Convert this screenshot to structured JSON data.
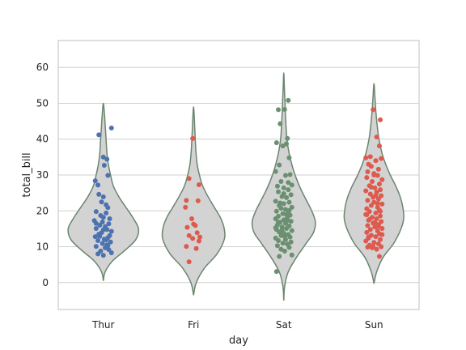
{
  "chart_data": {
    "type": "violin+strip",
    "xlabel": "day",
    "ylabel": "total_bill",
    "categories": [
      "Thur",
      "Fri",
      "Sat",
      "Sun"
    ],
    "ylim": [
      -7.5,
      67.5
    ],
    "yticks": [
      0,
      10,
      20,
      30,
      40,
      50,
      60
    ],
    "grid": "horizontal",
    "colors": {
      "violin_fill": "#d3d3d3",
      "violin_edge": "#6b8570",
      "Thur": "#4c72b0",
      "Fri": "#dd5a4e",
      "Sat": "#6a9070",
      "Sun": "#dd5a4e",
      "grid": "#cfcfcf",
      "frame": "#cccccc"
    },
    "violins": [
      {
        "day": "Thur",
        "min": 0.5,
        "max": 50,
        "profile": [
          [
            0.5,
            0.0
          ],
          [
            3,
            0.02
          ],
          [
            6,
            0.1
          ],
          [
            9,
            0.24
          ],
          [
            12,
            0.36
          ],
          [
            15,
            0.39
          ],
          [
            18,
            0.33
          ],
          [
            21,
            0.25
          ],
          [
            24,
            0.17
          ],
          [
            27,
            0.11
          ],
          [
            30,
            0.08
          ],
          [
            33,
            0.055
          ],
          [
            36,
            0.04
          ],
          [
            40,
            0.03
          ],
          [
            44,
            0.02
          ],
          [
            47,
            0.012
          ],
          [
            50,
            0.0
          ]
        ]
      },
      {
        "day": "Fri",
        "min": -3.5,
        "max": 49,
        "profile": [
          [
            -3.5,
            0.0
          ],
          [
            0,
            0.03
          ],
          [
            4,
            0.12
          ],
          [
            8,
            0.26
          ],
          [
            12,
            0.34
          ],
          [
            15,
            0.34
          ],
          [
            18,
            0.3
          ],
          [
            21,
            0.23
          ],
          [
            24,
            0.16
          ],
          [
            27,
            0.1
          ],
          [
            30,
            0.065
          ],
          [
            33,
            0.04
          ],
          [
            37,
            0.025
          ],
          [
            42,
            0.015
          ],
          [
            46,
            0.008
          ],
          [
            49,
            0.0
          ]
        ]
      },
      {
        "day": "Sat",
        "min": -5,
        "max": 58.5,
        "profile": [
          [
            -5,
            0.0
          ],
          [
            -1,
            0.01
          ],
          [
            3,
            0.05
          ],
          [
            7,
            0.14
          ],
          [
            11,
            0.25
          ],
          [
            14,
            0.33
          ],
          [
            17,
            0.35
          ],
          [
            20,
            0.31
          ],
          [
            23,
            0.25
          ],
          [
            26,
            0.19
          ],
          [
            29,
            0.14
          ],
          [
            32,
            0.1
          ],
          [
            36,
            0.06
          ],
          [
            40,
            0.035
          ],
          [
            45,
            0.022
          ],
          [
            50,
            0.014
          ],
          [
            54,
            0.007
          ],
          [
            58.5,
            0.0
          ]
        ]
      },
      {
        "day": "Sun",
        "min": -0.3,
        "max": 55.5,
        "profile": [
          [
            -0.3,
            0.0
          ],
          [
            3,
            0.03
          ],
          [
            7,
            0.1
          ],
          [
            11,
            0.22
          ],
          [
            15,
            0.3
          ],
          [
            18,
            0.33
          ],
          [
            21,
            0.32
          ],
          [
            24,
            0.29
          ],
          [
            27,
            0.24
          ],
          [
            30,
            0.18
          ],
          [
            33,
            0.13
          ],
          [
            36,
            0.09
          ],
          [
            40,
            0.055
          ],
          [
            44,
            0.035
          ],
          [
            48,
            0.02
          ],
          [
            52,
            0.01
          ],
          [
            55.5,
            0.0
          ]
        ]
      }
    ],
    "points": {
      "Thur": [
        [
          -0.05,
          41.2
        ],
        [
          0.09,
          43.1
        ],
        [
          0.0,
          35.0
        ],
        [
          0.04,
          34.4
        ],
        [
          0.01,
          32.7
        ],
        [
          0.05,
          29.9
        ],
        [
          -0.09,
          28.4
        ],
        [
          -0.06,
          27.2
        ],
        [
          -0.05,
          24.6
        ],
        [
          0.0,
          23.9
        ],
        [
          -0.02,
          22.5
        ],
        [
          0.03,
          21.7
        ],
        [
          0.05,
          20.9
        ],
        [
          -0.08,
          19.8
        ],
        [
          0.03,
          19.4
        ],
        [
          -0.03,
          18.7
        ],
        [
          0.0,
          18.2
        ],
        [
          0.07,
          17.8
        ],
        [
          -0.1,
          17.3
        ],
        [
          -0.01,
          16.9
        ],
        [
          0.06,
          16.4
        ],
        [
          -0.04,
          16.0
        ],
        [
          0.02,
          15.6
        ],
        [
          -0.08,
          15.1
        ],
        [
          0.04,
          14.8
        ],
        [
          0.09,
          14.3
        ],
        [
          -0.02,
          13.9
        ],
        [
          -0.05,
          13.5
        ],
        [
          0.07,
          13.1
        ],
        [
          -0.09,
          12.8
        ],
        [
          0.05,
          12.5
        ],
        [
          0.01,
          12.1
        ],
        [
          -0.06,
          11.7
        ],
        [
          0.08,
          11.3
        ],
        [
          -0.01,
          10.9
        ],
        [
          0.04,
          10.5
        ],
        [
          -0.08,
          10.1
        ],
        [
          0.02,
          9.7
        ],
        [
          0.06,
          9.2
        ],
        [
          -0.03,
          8.8
        ],
        [
          0.09,
          8.3
        ],
        [
          -0.06,
          8.0
        ],
        [
          0.0,
          7.6
        ],
        [
          0.05,
          10.3
        ],
        [
          -0.04,
          12.9
        ],
        [
          0.0,
          14.7
        ],
        [
          -0.08,
          16.5
        ],
        [
          0.03,
          11.9
        ]
      ],
      "Fri": [
        [
          -0.01,
          40.2
        ],
        [
          0.06,
          27.3
        ],
        [
          -0.05,
          29.0
        ],
        [
          0.05,
          22.8
        ],
        [
          -0.08,
          22.9
        ],
        [
          -0.09,
          21.0
        ],
        [
          -0.02,
          17.8
        ],
        [
          0.0,
          16.3
        ],
        [
          0.02,
          15.9
        ],
        [
          -0.07,
          15.4
        ],
        [
          0.04,
          13.9
        ],
        [
          -0.05,
          13.1
        ],
        [
          0.07,
          12.7
        ],
        [
          -0.01,
          12.3
        ],
        [
          0.06,
          11.6
        ],
        [
          -0.08,
          10.1
        ],
        [
          0.03,
          9.5
        ],
        [
          -0.05,
          5.8
        ]
      ],
      "Sat": [
        [
          0.05,
          50.8
        ],
        [
          0.01,
          48.3
        ],
        [
          -0.06,
          48.2
        ],
        [
          -0.04,
          44.3
        ],
        [
          -0.08,
          39.0
        ],
        [
          0.04,
          40.2
        ],
        [
          -0.01,
          38.1
        ],
        [
          0.03,
          38.7
        ],
        [
          0.06,
          34.8
        ],
        [
          -0.05,
          32.8
        ],
        [
          -0.09,
          31.0
        ],
        [
          0.07,
          30.1
        ],
        [
          0.02,
          29.9
        ],
        [
          -0.03,
          28.2
        ],
        [
          0.09,
          27.2
        ],
        [
          -0.07,
          26.9
        ],
        [
          0.0,
          26.4
        ],
        [
          0.05,
          25.9
        ],
        [
          -0.06,
          25.3
        ],
        [
          0.08,
          24.5
        ],
        [
          -0.02,
          24.0
        ],
        [
          0.03,
          23.7
        ],
        [
          -0.09,
          22.7
        ],
        [
          0.06,
          22.4
        ],
        [
          0.0,
          22.0
        ],
        [
          -0.05,
          21.5
        ],
        [
          0.09,
          21.0
        ],
        [
          -0.03,
          20.7
        ],
        [
          0.02,
          20.4
        ],
        [
          -0.08,
          19.9
        ],
        [
          0.05,
          19.6
        ],
        [
          -0.01,
          19.2
        ],
        [
          0.07,
          18.8
        ],
        [
          -0.06,
          18.5
        ],
        [
          0.04,
          18.2
        ],
        [
          -0.09,
          17.8
        ],
        [
          0.0,
          17.5
        ],
        [
          0.08,
          17.1
        ],
        [
          -0.04,
          16.8
        ],
        [
          0.02,
          16.5
        ],
        [
          -0.07,
          16.1
        ],
        [
          0.06,
          15.8
        ],
        [
          -0.02,
          15.5
        ],
        [
          0.03,
          15.1
        ],
        [
          -0.08,
          14.8
        ],
        [
          0.09,
          14.5
        ],
        [
          -0.05,
          14.1
        ],
        [
          0.0,
          13.8
        ],
        [
          0.05,
          13.4
        ],
        [
          -0.03,
          13.1
        ],
        [
          0.07,
          12.7
        ],
        [
          -0.09,
          12.4
        ],
        [
          0.02,
          12.0
        ],
        [
          -0.06,
          11.7
        ],
        [
          0.08,
          11.3
        ],
        [
          -0.01,
          11.0
        ],
        [
          0.04,
          10.7
        ],
        [
          -0.07,
          10.3
        ],
        [
          0.06,
          9.8
        ],
        [
          -0.03,
          9.3
        ],
        [
          0.01,
          8.8
        ],
        [
          -0.05,
          7.3
        ],
        [
          0.09,
          7.7
        ],
        [
          -0.08,
          3.1
        ],
        [
          0.03,
          19.0
        ],
        [
          -0.04,
          22.2
        ],
        [
          0.05,
          27.9
        ],
        [
          -0.06,
          16.9
        ],
        [
          0.0,
          24.8
        ],
        [
          0.06,
          20.1
        ],
        [
          -0.09,
          15.3
        ],
        [
          0.01,
          12.9
        ],
        [
          0.04,
          17.3
        ],
        [
          -0.02,
          14.6
        ]
      ],
      "Sun": [
        [
          -0.01,
          48.2
        ],
        [
          0.07,
          45.4
        ],
        [
          0.03,
          40.6
        ],
        [
          0.06,
          38.1
        ],
        [
          -0.04,
          35.1
        ],
        [
          -0.09,
          34.8
        ],
        [
          0.08,
          34.6
        ],
        [
          0.02,
          34.0
        ],
        [
          -0.06,
          33.0
        ],
        [
          -0.03,
          32.4
        ],
        [
          0.05,
          31.6
        ],
        [
          -0.07,
          30.9
        ],
        [
          0.0,
          30.4
        ],
        [
          0.04,
          29.9
        ],
        [
          -0.08,
          29.3
        ],
        [
          0.09,
          28.7
        ],
        [
          -0.02,
          28.2
        ],
        [
          0.06,
          27.5
        ],
        [
          -0.05,
          27.0
        ],
        [
          0.01,
          26.4
        ],
        [
          0.07,
          25.9
        ],
        [
          -0.09,
          25.6
        ],
        [
          0.03,
          25.2
        ],
        [
          -0.04,
          24.7
        ],
        [
          0.08,
          24.2
        ],
        [
          -0.01,
          23.8
        ],
        [
          0.05,
          23.3
        ],
        [
          -0.07,
          22.9
        ],
        [
          0.0,
          22.4
        ],
        [
          0.09,
          21.9
        ],
        [
          -0.03,
          21.5
        ],
        [
          0.04,
          21.0
        ],
        [
          -0.08,
          20.6
        ],
        [
          0.06,
          20.2
        ],
        [
          -0.05,
          19.8
        ],
        [
          0.02,
          19.4
        ],
        [
          -0.09,
          19.0
        ],
        [
          0.07,
          18.6
        ],
        [
          -0.02,
          18.2
        ],
        [
          0.03,
          17.8
        ],
        [
          -0.06,
          17.4
        ],
        [
          0.08,
          17.0
        ],
        [
          -0.01,
          16.6
        ],
        [
          0.05,
          16.2
        ],
        [
          -0.07,
          15.9
        ],
        [
          0.01,
          15.5
        ],
        [
          0.09,
          15.1
        ],
        [
          -0.04,
          14.8
        ],
        [
          0.04,
          14.4
        ],
        [
          -0.08,
          14.0
        ],
        [
          0.06,
          13.6
        ],
        [
          -0.03,
          13.2
        ],
        [
          0.02,
          12.8
        ],
        [
          -0.06,
          12.4
        ],
        [
          0.07,
          12.0
        ],
        [
          -0.09,
          11.6
        ],
        [
          0.0,
          11.2
        ],
        [
          0.05,
          10.8
        ],
        [
          -0.05,
          10.4
        ],
        [
          0.08,
          10.0
        ],
        [
          -0.02,
          9.7
        ],
        [
          0.03,
          9.3
        ],
        [
          0.06,
          7.3
        ],
        [
          -0.07,
          9.9
        ],
        [
          0.01,
          16.8
        ],
        [
          -0.03,
          26.6
        ],
        [
          0.04,
          22.1
        ],
        [
          -0.08,
          18.9
        ],
        [
          0.09,
          13.4
        ],
        [
          -0.01,
          10.1
        ],
        [
          0.02,
          24.3
        ],
        [
          -0.05,
          17.6
        ],
        [
          0.07,
          19.9
        ],
        [
          -0.06,
          12.7
        ],
        [
          0.0,
          30.0
        ],
        [
          0.05,
          15.7
        ]
      ]
    }
  }
}
